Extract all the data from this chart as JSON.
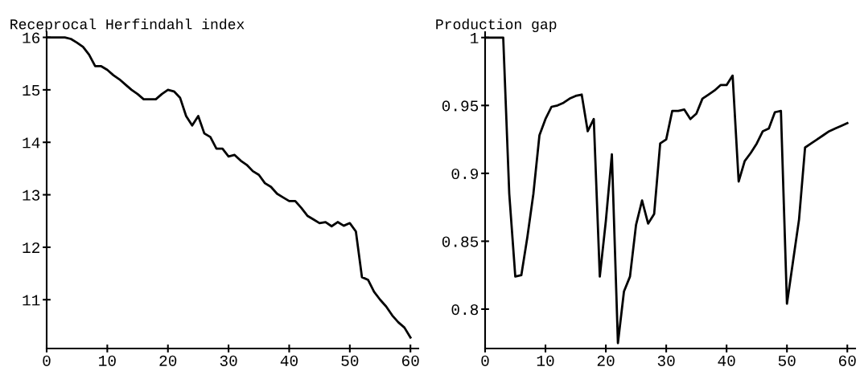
{
  "chart_data": [
    {
      "type": "line",
      "ylabel": "Receprocal Herfindahl index",
      "x": [
        0,
        1,
        2,
        3,
        4,
        5,
        6,
        7,
        8,
        9,
        10,
        11,
        12,
        13,
        14,
        15,
        16,
        17,
        18,
        19,
        20,
        21,
        22,
        23,
        24,
        25,
        26,
        27,
        28,
        29,
        30,
        31,
        32,
        33,
        34,
        35,
        36,
        37,
        38,
        39,
        40,
        41,
        42,
        43,
        44,
        45,
        46,
        47,
        48,
        49,
        50,
        51,
        52,
        53,
        54,
        55,
        56,
        57,
        58,
        59,
        60
      ],
      "series": [
        {
          "color": "#000000",
          "values": [
            16,
            16,
            16,
            16,
            15.97,
            15.9,
            15.82,
            15.67,
            15.45,
            15.45,
            15.38,
            15.28,
            15.2,
            15.1,
            15.0,
            14.92,
            14.82,
            14.82,
            14.82,
            14.92,
            15.0,
            14.97,
            14.85,
            14.5,
            14.32,
            14.5,
            14.17,
            14.1,
            13.88,
            13.88,
            13.73,
            13.76,
            13.65,
            13.57,
            13.45,
            13.38,
            13.22,
            13.15,
            13.02,
            12.95,
            12.88,
            12.88,
            12.75,
            12.6,
            12.53,
            12.46,
            12.48,
            12.4,
            12.48,
            12.41,
            12.46,
            12.3,
            11.43,
            11.38,
            11.15,
            11.0,
            10.87,
            10.7,
            10.57,
            10.47,
            10.28
          ]
        }
      ],
      "xlim": [
        0,
        61.3
      ],
      "ylim": [
        10.07,
        16.1
      ],
      "xticks": [
        0,
        10,
        20,
        30,
        40,
        50,
        60
      ],
      "yticks": [
        11,
        12,
        13,
        14,
        15,
        16
      ],
      "grid": false,
      "legend": false,
      "marker": "none",
      "line_style": "solid"
    },
    {
      "type": "line",
      "ylabel": "Production gap",
      "x": [
        0,
        1,
        2,
        3,
        4,
        5,
        6,
        7,
        8,
        9,
        10,
        11,
        12,
        13,
        14,
        15,
        16,
        17,
        18,
        19,
        20,
        21,
        22,
        23,
        24,
        25,
        26,
        27,
        28,
        29,
        30,
        31,
        32,
        33,
        34,
        35,
        36,
        37,
        38,
        39,
        40,
        41,
        42,
        43,
        44,
        45,
        46,
        47,
        48,
        49,
        50,
        51,
        52,
        53,
        54,
        55,
        56,
        57,
        58,
        59,
        60
      ],
      "series": [
        {
          "color": "#000000",
          "values": [
            1,
            1,
            1,
            1,
            0.885,
            0.824,
            0.825,
            0.853,
            0.885,
            0.928,
            0.94,
            0.949,
            0.95,
            0.952,
            0.955,
            0.957,
            0.958,
            0.931,
            0.94,
            0.824,
            0.865,
            0.914,
            0.775,
            0.813,
            0.824,
            0.862,
            0.88,
            0.863,
            0.87,
            0.922,
            0.925,
            0.946,
            0.946,
            0.947,
            0.94,
            0.944,
            0.955,
            0.958,
            0.961,
            0.965,
            0.965,
            0.972,
            0.894,
            0.909,
            0.915,
            0.922,
            0.931,
            0.933,
            0.945,
            0.946,
            0.804,
            0.835,
            0.866,
            0.919,
            0.922,
            0.925,
            0.928,
            0.931,
            0.933,
            0.935,
            0.937
          ]
        }
      ],
      "xlim": [
        0,
        61.3
      ],
      "ylim": [
        0.771,
        1.004
      ],
      "xticks": [
        0,
        10,
        20,
        30,
        40,
        50,
        60
      ],
      "yticks": [
        0.8,
        0.85,
        0.9,
        0.95,
        1
      ],
      "grid": false,
      "legend": false,
      "marker": "none",
      "line_style": "solid"
    }
  ]
}
